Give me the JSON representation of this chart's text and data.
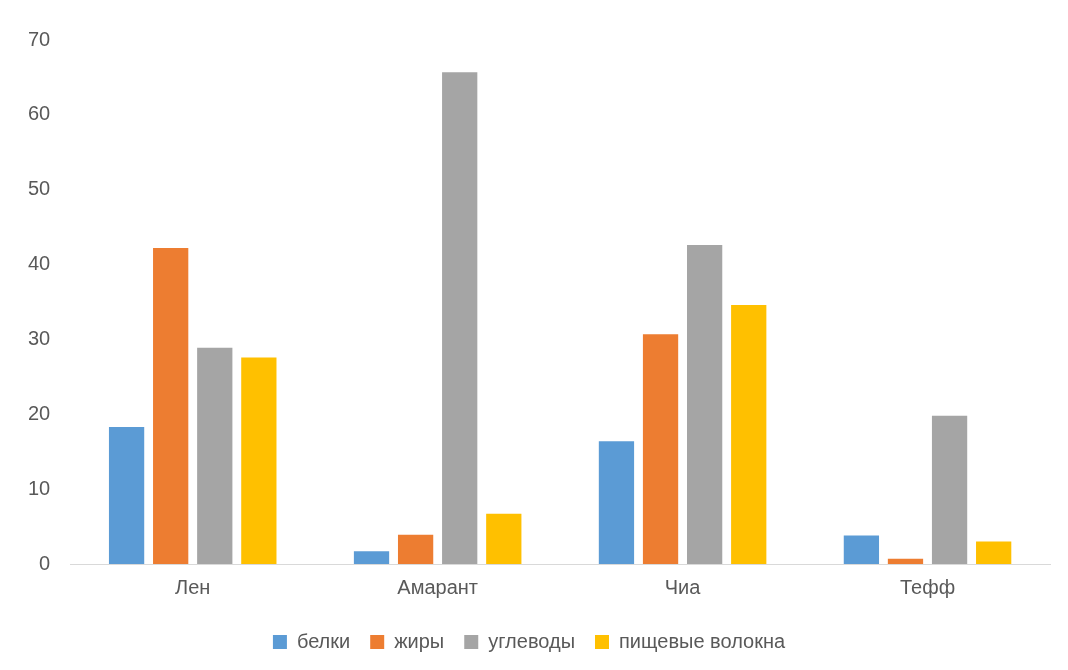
{
  "chart_data": {
    "type": "bar",
    "categories": [
      "Лен",
      "Амарант",
      "Чиа",
      "Тефф"
    ],
    "series": [
      {
        "name": "белки",
        "color": "#5b9bd5",
        "values": [
          18.3,
          1.7,
          16.4,
          3.8
        ]
      },
      {
        "name": "жиры",
        "color": "#ed7d31",
        "values": [
          42.2,
          3.9,
          30.7,
          0.7
        ]
      },
      {
        "name": "углеводы",
        "color": "#a5a5a5",
        "values": [
          28.9,
          65.7,
          42.6,
          19.8
        ]
      },
      {
        "name": "пищевые волокна",
        "color": "#ffc000",
        "values": [
          27.6,
          6.7,
          34.6,
          3.0
        ]
      }
    ],
    "ylim": [
      0,
      70
    ],
    "yticks": [
      0,
      10,
      20,
      30,
      40,
      50,
      60,
      70
    ],
    "grid": false,
    "legend": "bottom"
  }
}
